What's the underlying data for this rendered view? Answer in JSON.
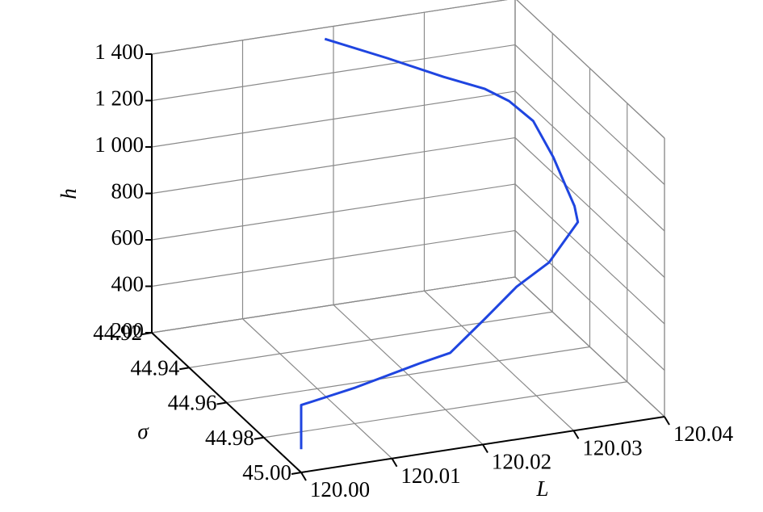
{
  "chart_data": {
    "type": "line3d",
    "xlabel": "L",
    "ylabel": "σ",
    "zlabel": "h",
    "xlim": [
      120.0,
      120.04
    ],
    "xticks": [
      {
        "value": 120.0,
        "label": "120.00"
      },
      120.01,
      120.02,
      120.03,
      120.04
    ],
    "ylim": [
      44.92,
      45.0
    ],
    "yticks": [
      44.92,
      44.94,
      44.96,
      44.98,
      {
        "value": 45.0,
        "label": "45.00"
      }
    ],
    "zlim": [
      200,
      1400
    ],
    "zticks": [
      200,
      400,
      600,
      800,
      {
        "value": 1000,
        "label": "1 000"
      },
      {
        "value": 1200,
        "label": "1 200"
      },
      {
        "value": 1400,
        "label": "1 400"
      }
    ],
    "grid": true,
    "color": "#1f45e0",
    "x": [
      120.0,
      120.0,
      120.0024,
      120.0062,
      120.0133,
      120.0168,
      120.0216,
      120.026,
      120.0294,
      120.0327,
      120.0326,
      120.0324,
      120.0327,
      120.0326,
      120.0314,
      120.0294,
      120.026,
      120.0221,
      120.0179
    ],
    "y": [
      45.0,
      45.0,
      44.9999,
      44.9989,
      44.9987,
      44.9981,
      44.9932,
      44.9889,
      44.9897,
      44.9891,
      44.9878,
      44.984,
      44.976,
      44.9657,
      44.9586,
      44.9554,
      44.9498,
      44.9386,
      44.9256
    ],
    "z": [
      300,
      490,
      505,
      520,
      580,
      600,
      680,
      760,
      850,
      1000,
      1060,
      1120,
      1180,
      1260,
      1300,
      1340,
      1370,
      1390,
      1400
    ]
  }
}
